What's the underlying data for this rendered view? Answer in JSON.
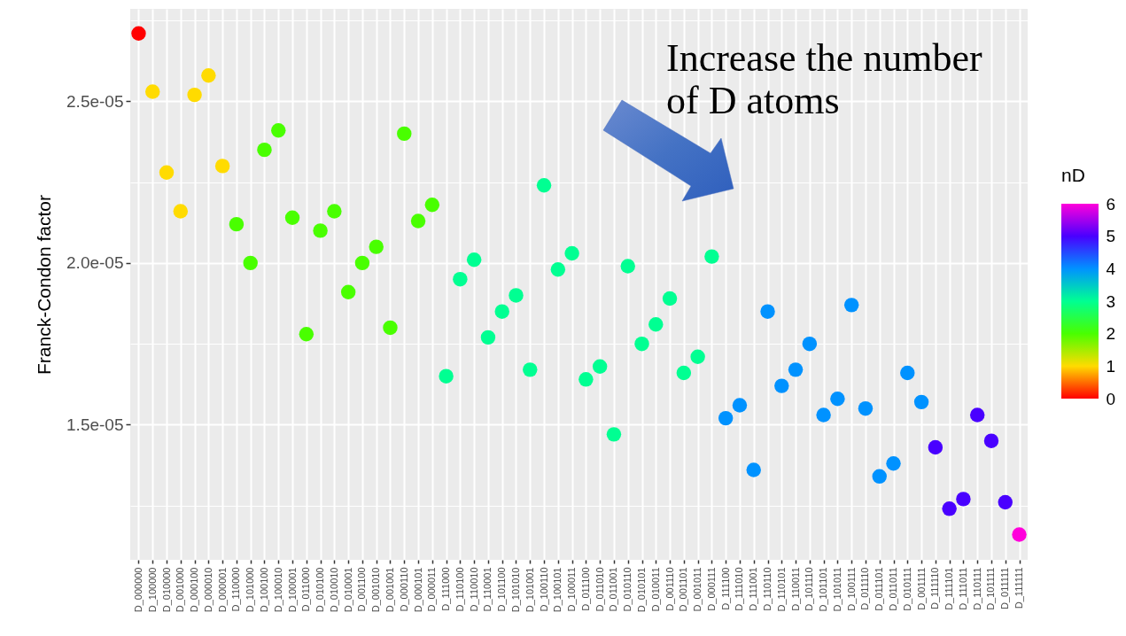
{
  "chart_data": {
    "type": "scatter",
    "ylabel": "Franck-Condon factor",
    "legend_title": "nD",
    "annotations": [
      "Increase the number of D atoms"
    ],
    "categories": [
      "D_000000",
      "D_100000",
      "D_010000",
      "D_001000",
      "D_000100",
      "D_000010",
      "D_000001",
      "D_110000",
      "D_101000",
      "D_100100",
      "D_100010",
      "D_100001",
      "D_011000",
      "D_010100",
      "D_010010",
      "D_010001",
      "D_001100",
      "D_001010",
      "D_001001",
      "D_000110",
      "D_000101",
      "D_000011",
      "D_111000",
      "D_110100",
      "D_110010",
      "D_110001",
      "D_101100",
      "D_101010",
      "D_101001",
      "D_100110",
      "D_100101",
      "D_100011",
      "D_011100",
      "D_011010",
      "D_011001",
      "D_010110",
      "D_010101",
      "D_010011",
      "D_001110",
      "D_001101",
      "D_001011",
      "D_000111",
      "D_111100",
      "D_111010",
      "D_111001",
      "D_110110",
      "D_110101",
      "D_110011",
      "D_101110",
      "D_101101",
      "D_101011",
      "D_100111",
      "D_011110",
      "D_011101",
      "D_011011",
      "D_010111",
      "D_001111",
      "D_111110",
      "D_111101",
      "D_111011",
      "D_110111",
      "D_101111",
      "D_011111",
      "D_111111"
    ],
    "values": [
      2.71e-05,
      2.53e-05,
      2.28e-05,
      2.16e-05,
      2.52e-05,
      2.58e-05,
      2.3e-05,
      2.12e-05,
      2e-05,
      2.35e-05,
      2.41e-05,
      2.14e-05,
      1.78e-05,
      2.1e-05,
      2.16e-05,
      1.91e-05,
      2e-05,
      2.05e-05,
      1.8e-05,
      2.4e-05,
      2.13e-05,
      2.18e-05,
      1.65e-05,
      1.95e-05,
      2.01e-05,
      1.77e-05,
      1.85e-05,
      1.9e-05,
      1.67e-05,
      2.24e-05,
      1.98e-05,
      2.03e-05,
      1.64e-05,
      1.68e-05,
      1.47e-05,
      1.99e-05,
      1.75e-05,
      1.81e-05,
      1.89e-05,
      1.66e-05,
      1.71e-05,
      2.02e-05,
      1.52e-05,
      1.56e-05,
      1.36e-05,
      1.85e-05,
      1.62e-05,
      1.67e-05,
      1.75e-05,
      1.53e-05,
      1.58e-05,
      1.87e-05,
      1.55e-05,
      1.34e-05,
      1.38e-05,
      1.66e-05,
      1.57e-05,
      1.43e-05,
      1.24e-05,
      1.27e-05,
      1.53e-05,
      1.45e-05,
      1.26e-05,
      1.16e-05
    ],
    "cvalues": [
      0,
      1,
      1,
      1,
      1,
      1,
      1,
      2,
      2,
      2,
      2,
      2,
      2,
      2,
      2,
      2,
      2,
      2,
      2,
      2,
      2,
      2,
      3,
      3,
      3,
      3,
      3,
      3,
      3,
      3,
      3,
      3,
      3,
      3,
      3,
      3,
      3,
      3,
      3,
      3,
      3,
      3,
      4,
      4,
      4,
      4,
      4,
      4,
      4,
      4,
      4,
      4,
      4,
      4,
      4,
      4,
      4,
      5,
      5,
      5,
      5,
      5,
      5,
      6
    ],
    "clim": [
      0,
      6
    ],
    "cticks": [
      0,
      1,
      2,
      3,
      4,
      5,
      6
    ],
    "ylim": [
      1.082e-05,
      2.786e-05
    ],
    "yticks": [
      {
        "value": 1.25e-05,
        "label": null
      },
      {
        "value": 1.5e-05,
        "label": "1.5e-05"
      },
      {
        "value": 1.75e-05,
        "label": null
      },
      {
        "value": 2e-05,
        "label": "2.0e-05"
      },
      {
        "value": 2.25e-05,
        "label": null
      },
      {
        "value": 2.5e-05,
        "label": "2.5e-05"
      },
      {
        "value": 2.75e-05,
        "label": null
      }
    ],
    "grid": true,
    "marker": "circle"
  }
}
